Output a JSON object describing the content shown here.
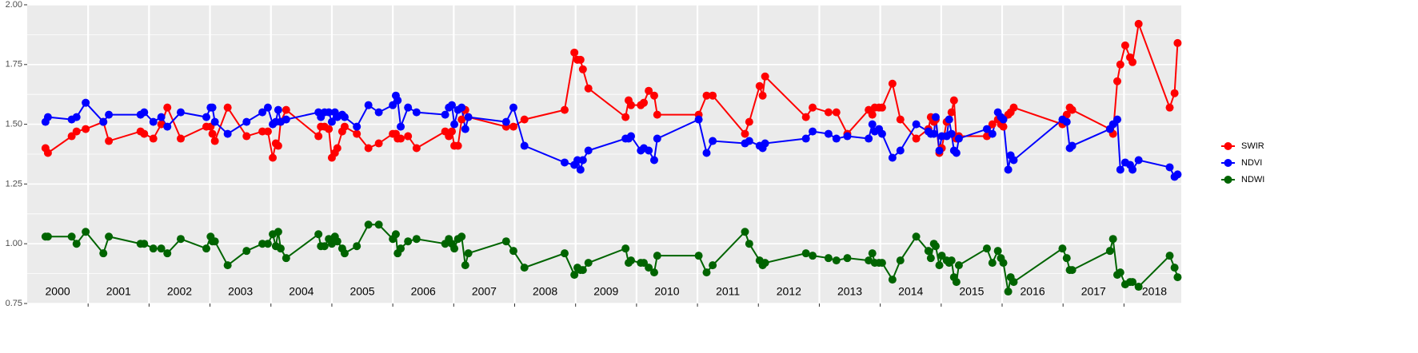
{
  "chart_data": {
    "type": "line",
    "x": [
      2000.3,
      2000.34,
      2000.73,
      2000.81,
      2000.96,
      2001.25,
      2001.34,
      2001.86,
      2001.92,
      2002.07,
      2002.2,
      2002.3,
      2002.52,
      2002.94,
      2003.01,
      2003.04,
      2003.08,
      2003.29,
      2003.6,
      2003.86,
      2003.95,
      2004.03,
      2004.08,
      2004.12,
      2004.16,
      2004.25,
      2004.78,
      2004.82,
      2004.88,
      2004.95,
      2005.0,
      2005.05,
      2005.09,
      2005.17,
      2005.21,
      2005.41,
      2005.6,
      2005.77,
      2006.0,
      2006.05,
      2006.08,
      2006.13,
      2006.25,
      2006.39,
      2006.86,
      2006.92,
      2006.97,
      2007.01,
      2007.07,
      2007.13,
      2007.19,
      2007.24,
      2007.86,
      2007.98,
      2008.16,
      2008.82,
      2008.98,
      2009.03,
      2009.08,
      2009.12,
      2009.21,
      2009.82,
      2009.87,
      2009.91,
      2010.07,
      2010.12,
      2010.2,
      2010.29,
      2010.34,
      2011.02,
      2011.15,
      2011.25,
      2011.78,
      2011.85,
      2012.02,
      2012.07,
      2012.11,
      2012.78,
      2012.89,
      2013.15,
      2013.28,
      2013.46,
      2013.81,
      2013.87,
      2013.91,
      2013.98,
      2014.03,
      2014.2,
      2014.33,
      2014.59,
      2014.79,
      2014.83,
      2014.88,
      2014.91,
      2014.97,
      2015.01,
      2015.09,
      2015.13,
      2015.17,
      2015.21,
      2015.25,
      2015.29,
      2015.75,
      2015.84,
      2015.93,
      2015.98,
      2016.02,
      2016.1,
      2016.14,
      2016.19,
      2016.99,
      2017.06,
      2017.11,
      2017.15,
      2017.77,
      2017.82,
      2017.89,
      2017.94,
      2018.02,
      2018.1,
      2018.14,
      2018.24,
      2018.75,
      2018.83,
      2018.88
    ],
    "series": [
      {
        "name": "SWIR",
        "color": "#ff0000",
        "values": [
          1.4,
          1.38,
          1.45,
          1.47,
          1.48,
          1.51,
          1.43,
          1.47,
          1.46,
          1.44,
          1.5,
          1.57,
          1.44,
          1.49,
          1.49,
          1.46,
          1.43,
          1.57,
          1.45,
          1.47,
          1.47,
          1.36,
          1.42,
          1.41,
          1.51,
          1.56,
          1.45,
          1.49,
          1.49,
          1.48,
          1.36,
          1.38,
          1.4,
          1.47,
          1.49,
          1.46,
          1.4,
          1.42,
          1.46,
          1.46,
          1.44,
          1.44,
          1.45,
          1.4,
          1.47,
          1.45,
          1.47,
          1.41,
          1.41,
          1.52,
          1.56,
          1.53,
          1.49,
          1.49,
          1.52,
          1.56,
          1.8,
          1.77,
          1.77,
          1.73,
          1.65,
          1.53,
          1.6,
          1.58,
          1.58,
          1.59,
          1.64,
          1.62,
          1.54,
          1.54,
          1.62,
          1.62,
          1.46,
          1.51,
          1.66,
          1.62,
          1.7,
          1.53,
          1.57,
          1.55,
          1.55,
          1.46,
          1.56,
          1.54,
          1.57,
          1.57,
          1.57,
          1.67,
          1.52,
          1.44,
          1.48,
          1.53,
          1.51,
          1.52,
          1.38,
          1.4,
          1.51,
          1.52,
          1.55,
          1.6,
          1.44,
          1.45,
          1.45,
          1.5,
          1.52,
          1.5,
          1.49,
          1.54,
          1.55,
          1.57,
          1.5,
          1.54,
          1.57,
          1.56,
          1.48,
          1.46,
          1.68,
          1.75,
          1.83,
          1.78,
          1.76,
          1.92,
          1.57,
          1.63,
          1.84
        ]
      },
      {
        "name": "NDVI",
        "color": "#0000ff",
        "values": [
          1.51,
          1.53,
          1.52,
          1.53,
          1.59,
          1.51,
          1.54,
          1.54,
          1.55,
          1.51,
          1.53,
          1.49,
          1.55,
          1.53,
          1.57,
          1.57,
          1.51,
          1.46,
          1.51,
          1.55,
          1.57,
          1.5,
          1.51,
          1.56,
          1.51,
          1.52,
          1.55,
          1.53,
          1.55,
          1.55,
          1.51,
          1.55,
          1.53,
          1.54,
          1.53,
          1.49,
          1.58,
          1.55,
          1.58,
          1.62,
          1.6,
          1.49,
          1.57,
          1.55,
          1.54,
          1.57,
          1.58,
          1.5,
          1.56,
          1.57,
          1.48,
          1.53,
          1.51,
          1.57,
          1.41,
          1.34,
          1.33,
          1.35,
          1.31,
          1.35,
          1.39,
          1.44,
          1.44,
          1.45,
          1.39,
          1.4,
          1.39,
          1.35,
          1.44,
          1.52,
          1.38,
          1.43,
          1.42,
          1.43,
          1.41,
          1.4,
          1.42,
          1.44,
          1.47,
          1.46,
          1.44,
          1.45,
          1.44,
          1.5,
          1.47,
          1.48,
          1.46,
          1.36,
          1.39,
          1.5,
          1.47,
          1.46,
          1.46,
          1.53,
          1.39,
          1.45,
          1.45,
          1.52,
          1.46,
          1.39,
          1.38,
          1.44,
          1.48,
          1.46,
          1.55,
          1.53,
          1.52,
          1.31,
          1.37,
          1.35,
          1.52,
          1.51,
          1.4,
          1.41,
          1.48,
          1.5,
          1.52,
          1.31,
          1.34,
          1.33,
          1.31,
          1.35,
          1.32,
          1.28,
          1.29
        ]
      },
      {
        "name": "NDWI",
        "color": "#006400",
        "values": [
          1.03,
          1.03,
          1.03,
          1.0,
          1.05,
          0.96,
          1.03,
          1.0,
          1.0,
          0.98,
          0.98,
          0.96,
          1.02,
          0.98,
          1.03,
          1.01,
          1.01,
          0.91,
          0.97,
          1.0,
          1.0,
          1.04,
          0.99,
          1.05,
          0.98,
          0.94,
          1.04,
          0.99,
          0.99,
          1.02,
          1.0,
          1.03,
          1.01,
          0.98,
          0.96,
          0.99,
          1.08,
          1.08,
          1.02,
          1.04,
          0.96,
          0.98,
          1.01,
          1.02,
          1.0,
          1.02,
          1.0,
          0.98,
          1.02,
          1.03,
          0.91,
          0.96,
          1.01,
          0.97,
          0.9,
          0.96,
          0.87,
          0.9,
          0.89,
          0.89,
          0.92,
          0.98,
          0.92,
          0.93,
          0.92,
          0.92,
          0.9,
          0.88,
          0.95,
          0.95,
          0.88,
          0.91,
          1.05,
          1.0,
          0.93,
          0.91,
          0.92,
          0.96,
          0.95,
          0.94,
          0.93,
          0.94,
          0.93,
          0.96,
          0.92,
          0.92,
          0.92,
          0.85,
          0.93,
          1.03,
          0.97,
          0.94,
          1.0,
          0.99,
          0.91,
          0.95,
          0.93,
          0.92,
          0.93,
          0.86,
          0.84,
          0.91,
          0.98,
          0.92,
          0.97,
          0.94,
          0.92,
          0.8,
          0.86,
          0.84,
          0.98,
          0.94,
          0.89,
          0.89,
          0.97,
          1.02,
          0.87,
          0.88,
          0.83,
          0.84,
          0.84,
          0.82,
          0.95,
          0.9,
          0.86
        ]
      }
    ],
    "xlim": [
      2000,
      2018.94
    ],
    "xticks": [
      2001,
      2002,
      2003,
      2004,
      2005,
      2006,
      2007,
      2008,
      2009,
      2010,
      2011,
      2012,
      2013,
      2014,
      2015,
      2016,
      2017,
      2018
    ],
    "ylim": [
      0.75,
      2.0
    ],
    "yticks": [
      {
        "value": 0.75,
        "label": "0.75"
      },
      {
        "value": 1.0,
        "label": "1.00"
      },
      {
        "value": 1.25,
        "label": "1.25"
      },
      {
        "value": 1.5,
        "label": "1.50"
      },
      {
        "value": 1.75,
        "label": "1.75"
      },
      {
        "value": 2.0,
        "label": "2.00"
      }
    ],
    "annotations": [
      {
        "text": "2000",
        "x": 2000.5
      },
      {
        "text": "2001",
        "x": 2001.5
      },
      {
        "text": "2002",
        "x": 2002.5
      },
      {
        "text": "2003",
        "x": 2003.5
      },
      {
        "text": "2004",
        "x": 2004.5
      },
      {
        "text": "2005",
        "x": 2005.5
      },
      {
        "text": "2006",
        "x": 2006.5
      },
      {
        "text": "2007",
        "x": 2007.5
      },
      {
        "text": "2008",
        "x": 2008.5
      },
      {
        "text": "2009",
        "x": 2009.5
      },
      {
        "text": "2010",
        "x": 2010.5
      },
      {
        "text": "2011",
        "x": 2011.5
      },
      {
        "text": "2012",
        "x": 2012.5
      },
      {
        "text": "2013",
        "x": 2013.5
      },
      {
        "text": "2014",
        "x": 2014.5
      },
      {
        "text": "2015",
        "x": 2015.5
      },
      {
        "text": "2016",
        "x": 2016.5
      },
      {
        "text": "2017",
        "x": 2017.5
      },
      {
        "text": "2018",
        "x": 2018.5
      }
    ],
    "grid": true,
    "legend": "right"
  }
}
